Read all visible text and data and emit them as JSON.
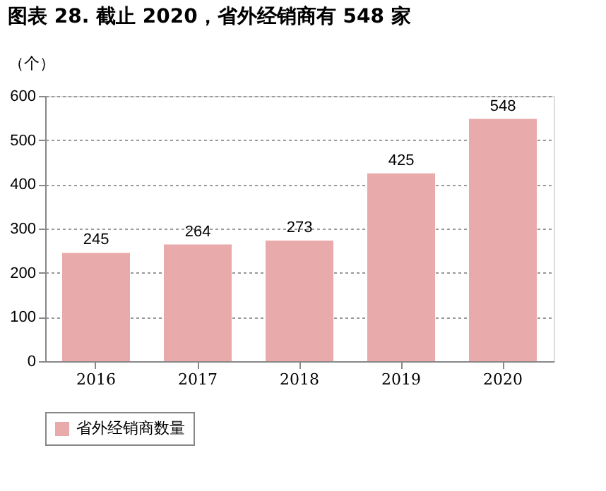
{
  "chart_data": {
    "type": "bar",
    "title": "图表 28. 截止 2020，省外经销商有 548 家",
    "ylabel": "（个）",
    "categories": [
      "2016",
      "2017",
      "2018",
      "2019",
      "2020"
    ],
    "series": [
      {
        "name": "省外经销商数量",
        "color": "#e8aaaa",
        "values": [
          245,
          264,
          273,
          425,
          548
        ]
      }
    ],
    "ylim": [
      0,
      600
    ],
    "yticks": [
      0,
      100,
      200,
      300,
      400,
      500,
      600
    ],
    "grid": "y",
    "legend": "bottom",
    "data_labels": true
  }
}
